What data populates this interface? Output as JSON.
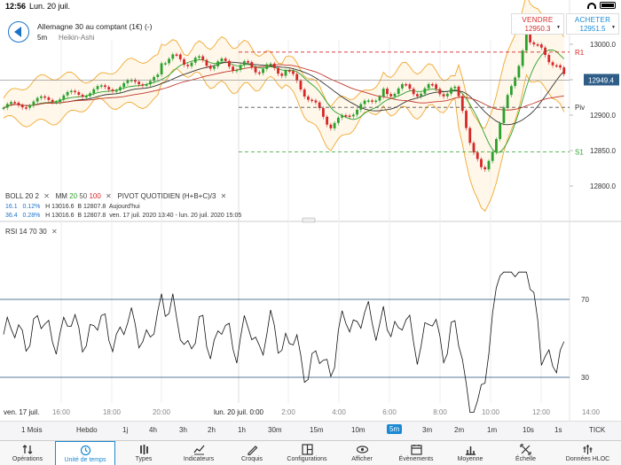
{
  "status": {
    "time": "12:56",
    "date": "Lun. 20 juil."
  },
  "instrument": {
    "name": "Allemagne 30 au comptant (1€) (-)",
    "timeframe": "5m",
    "chart_type": "Heikin-Ashi"
  },
  "trade": {
    "sell_label": "VENDRE",
    "sell_price": "12950.3",
    "buy_label": "ACHETER",
    "buy_price": "12951.5"
  },
  "indicators": {
    "boll": "BOLL",
    "boll_p1": "20",
    "boll_p2": "2",
    "mm": "MM",
    "mm_p1": "20",
    "mm_p2": "50",
    "mm_p3": "100",
    "pivot": "PIVOT",
    "pivot_p1": "QUOTIDIEN",
    "pivot_p2": "(H+B+C)/3",
    "row1_a": "16.1",
    "row1_b": "0.12%",
    "row1_h": "H 13016.6",
    "row1_l": "B 12807.8",
    "row1_t": "Aujourd'hui",
    "row2_a": "36.4",
    "row2_b": "0.28%",
    "row2_h": "H 13016.6",
    "row2_l": "B 12807.8",
    "row2_t": "ven. 17 juil. 2020 13:40 - lun. 20 juil. 2020 15:05",
    "rsi": "RSI",
    "rsi_p1": "14",
    "rsi_p2": "70",
    "rsi_p3": "30"
  },
  "price_axis": [
    "13000.0",
    "12950.0",
    "12900.0",
    "12850.0",
    "12800.0"
  ],
  "current_price": "12949.4",
  "pivots": {
    "r1": "R1",
    "piv": "Piv",
    "s1": "S1"
  },
  "rsi_axis": [
    "70",
    "30"
  ],
  "time_axis": [
    "ven. 17 juil.",
    "16:00",
    "18:00",
    "20:00",
    "lun. 20 juil. 0:00",
    "2:00",
    "4:00",
    "6:00",
    "8:00",
    "10:00",
    "12:00",
    "14:00"
  ],
  "timeframes": [
    "1 Mois",
    "Hebdo",
    "1j",
    "4h",
    "3h",
    "2h",
    "1h",
    "30m",
    "15m",
    "10m",
    "5m",
    "3m",
    "2m",
    "1m",
    "10s",
    "1s",
    "TICK"
  ],
  "active_timeframe": "5m",
  "nav": [
    "Opérations",
    "Unité de temps",
    "Types",
    "Indicateurs",
    "Croquis",
    "Configurations",
    "Afficher",
    "Évènements",
    "Moyenne",
    "Échelle",
    "Données HLOC"
  ],
  "active_nav": "Unité de temps",
  "colors": {
    "up": "#2ca02c",
    "down": "#d62728",
    "boll": "#f0a830",
    "accent": "#1a8ad4"
  }
}
